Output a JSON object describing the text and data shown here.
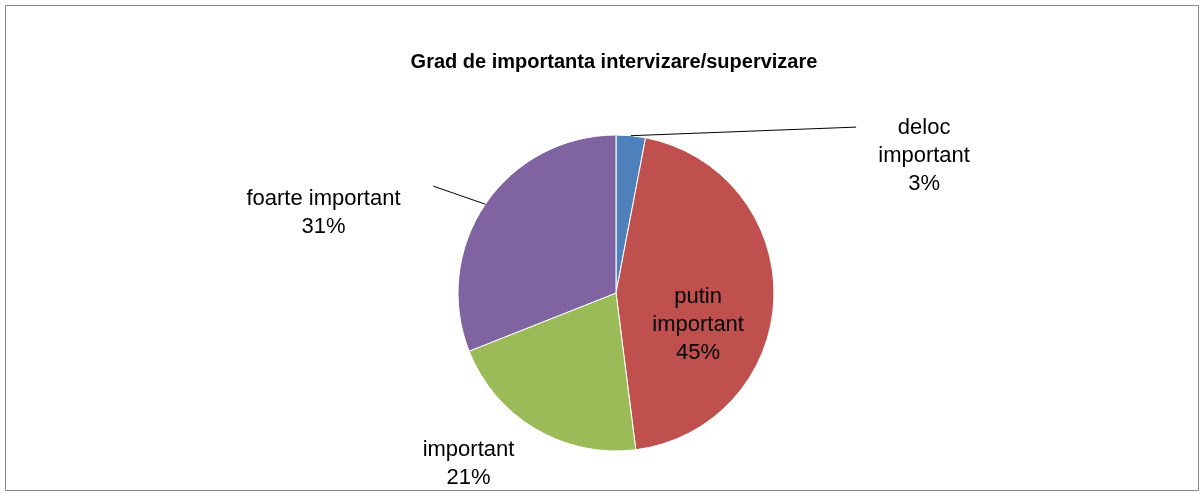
{
  "chart_data": {
    "type": "pie",
    "title": "Grad de importanta intervizare/supervizare",
    "categories": [
      "deloc important",
      "putin important",
      "important",
      "foarte important"
    ],
    "values": [
      3,
      45,
      21,
      31
    ],
    "value_labels": [
      "3%",
      "45%",
      "21%",
      "31%"
    ],
    "colors": [
      "#4f81bd",
      "#c0504d",
      "#9bbb59",
      "#8064a2"
    ]
  }
}
